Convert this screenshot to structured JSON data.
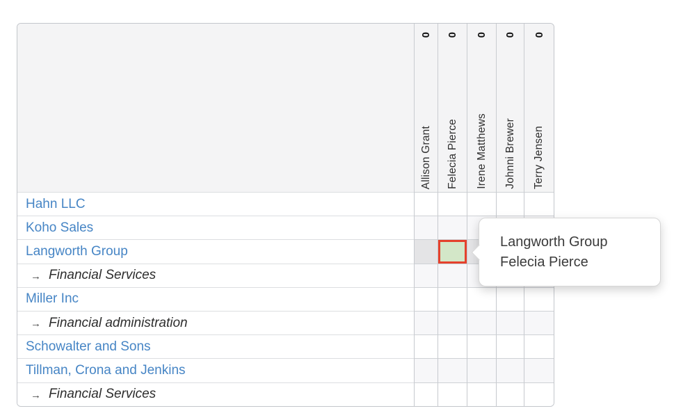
{
  "colors": {
    "link_blue": "#4685c5",
    "header_bg": "#f4f4f5",
    "hover_row_bg": "#e4e4e6",
    "stripe_row_bg": "#f7f7f9",
    "highlight_cell_fill": "#d3e7c8",
    "highlight_cell_border": "#e5412c"
  },
  "matrix": {
    "columns": [
      {
        "name": "Allison Grant",
        "count": "0"
      },
      {
        "name": "Felecia Pierce",
        "count": "0"
      },
      {
        "name": "Irene Matthews",
        "count": "0"
      },
      {
        "name": "Johnni Brewer",
        "count": "0"
      },
      {
        "name": "Terry Jensen",
        "count": "0"
      }
    ],
    "rows": [
      {
        "label": "Hahn LLC",
        "type": "company"
      },
      {
        "label": "Koho Sales",
        "type": "company"
      },
      {
        "label": "Langworth Group",
        "type": "company"
      },
      {
        "label": "Financial Services",
        "type": "sub",
        "arrow": "→"
      },
      {
        "label": "Miller Inc",
        "type": "company"
      },
      {
        "label": "Financial administration",
        "type": "sub",
        "arrow": "→"
      },
      {
        "label": "Schowalter and Sons",
        "type": "company"
      },
      {
        "label": "Tillman, Crona and Jenkins",
        "type": "company"
      },
      {
        "label": "Financial Services",
        "type": "sub",
        "arrow": "→"
      }
    ],
    "highlighted_cell": {
      "row": "Langworth Group",
      "column": "Felecia Pierce"
    }
  },
  "tooltip": {
    "line1": "Langworth Group",
    "line2": "Felecia Pierce"
  }
}
